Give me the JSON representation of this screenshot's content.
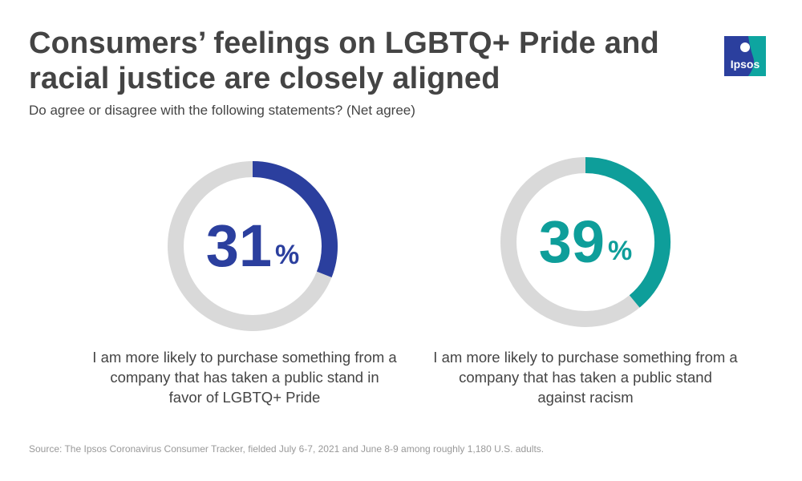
{
  "title": "Consumers’ feelings on LGBTQ+ Pride and racial justice are closely aligned",
  "subtitle": "Do agree or disagree with the following statements? (Net agree)",
  "source": "Source: The Ipsos Coronavirus Consumer Tracker, fielded July 6-7, 2021 and June 8-9 among roughly 1,180 U.S. adults.",
  "logo": {
    "text": "Ipsos",
    "colors": [
      "#2b3f9e",
      "#0ea5a0"
    ]
  },
  "track_color": "#d9d9d9",
  "chart_data": [
    {
      "type": "donut",
      "value": 31,
      "max": 100,
      "number_label": "31",
      "unit": "%",
      "color": "#2b3f9e",
      "caption": "I am more likely to purchase something from a company that has taken a public stand in favor of LGBTQ+ Pride"
    },
    {
      "type": "donut",
      "value": 39,
      "max": 100,
      "number_label": "39",
      "unit": "%",
      "color": "#0e9e9a",
      "caption": "I am more likely to purchase something from a company that has taken a public stand against racism"
    }
  ]
}
